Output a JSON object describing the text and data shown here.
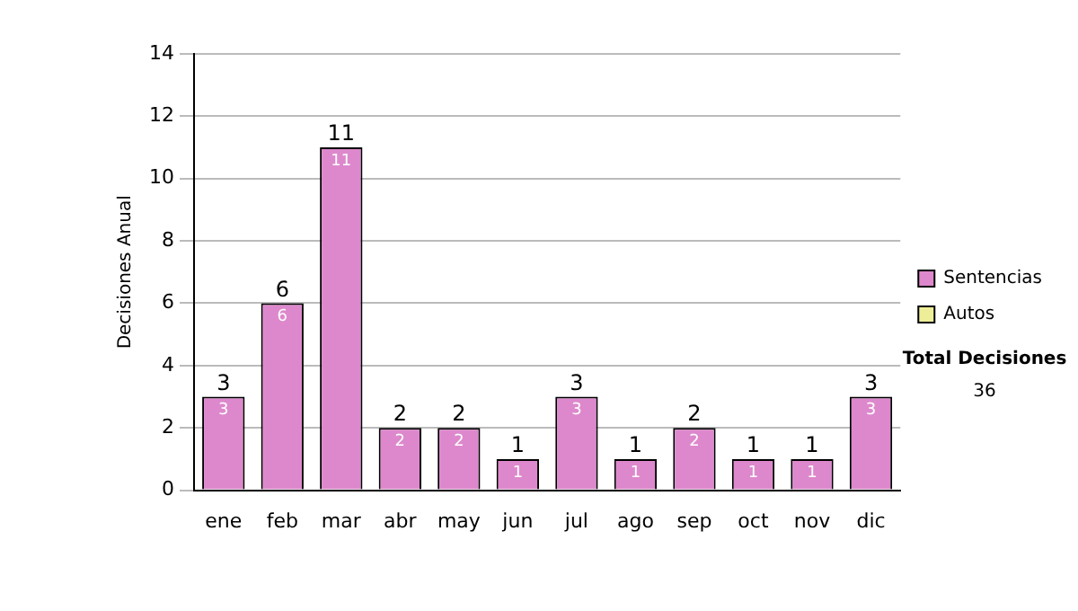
{
  "chart_data": {
    "type": "bar",
    "ylabel": "Decisiones Anual",
    "categories": [
      "ene",
      "feb",
      "mar",
      "abr",
      "may",
      "jun",
      "jul",
      "ago",
      "sep",
      "oct",
      "nov",
      "dic"
    ],
    "series": [
      {
        "name": "Sentencias",
        "color": "#dd88cc",
        "values": [
          3,
          6,
          11,
          2,
          2,
          1,
          3,
          1,
          2,
          1,
          1,
          3
        ]
      },
      {
        "name": "Autos",
        "color": "#eeee99",
        "values": [
          null,
          null,
          null,
          null,
          null,
          null,
          null,
          null,
          null,
          null,
          null,
          null
        ]
      }
    ],
    "stacked": true,
    "data_labels": true,
    "totals": [
      "3",
      "6",
      "11",
      "2",
      "2",
      "1",
      "3",
      "1",
      "2",
      "1",
      "1",
      "3"
    ],
    "ylim": [
      0,
      14
    ],
    "yticks": [
      0,
      2,
      4,
      6,
      8,
      10,
      12,
      14
    ],
    "grid": "y",
    "legend": "right",
    "annotations": [
      "Total Decisiones",
      "36"
    ]
  }
}
